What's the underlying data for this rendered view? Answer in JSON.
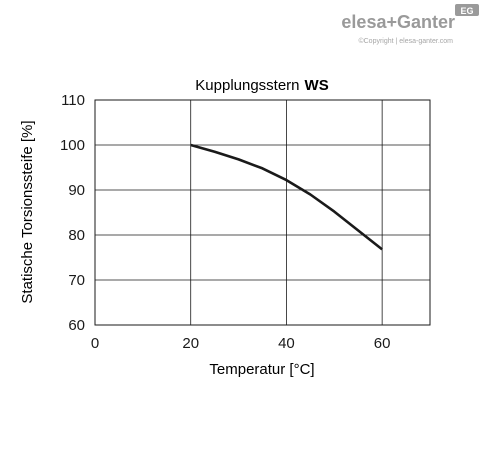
{
  "brand": {
    "logo_text": "elesa+Ganter",
    "badge": "EG",
    "copyright": "©Copyright | elesa-ganter.com",
    "color": "#9a9a9a"
  },
  "chart_data": {
    "type": "line",
    "title": "Kupplungsstern",
    "title_bold": "WS",
    "xlabel": "Temperatur [°C]",
    "ylabel": "Statische Torsionssteife [%]",
    "xlim": [
      0,
      70
    ],
    "ylim": [
      60,
      110
    ],
    "xticks": [
      0,
      20,
      40,
      60
    ],
    "yticks": [
      60,
      70,
      80,
      90,
      100,
      110
    ],
    "xgrid": [
      20,
      40,
      60,
      70
    ],
    "ygrid": [
      70,
      80,
      90,
      100,
      110
    ],
    "grid": true,
    "series": [
      {
        "color": "#1a1a1a",
        "x": [
          20,
          25,
          30,
          35,
          40,
          45,
          50,
          55,
          60
        ],
        "y": [
          100,
          98.5,
          96.8,
          94.8,
          92.2,
          89.0,
          85.2,
          81.0,
          76.8
        ]
      }
    ]
  }
}
